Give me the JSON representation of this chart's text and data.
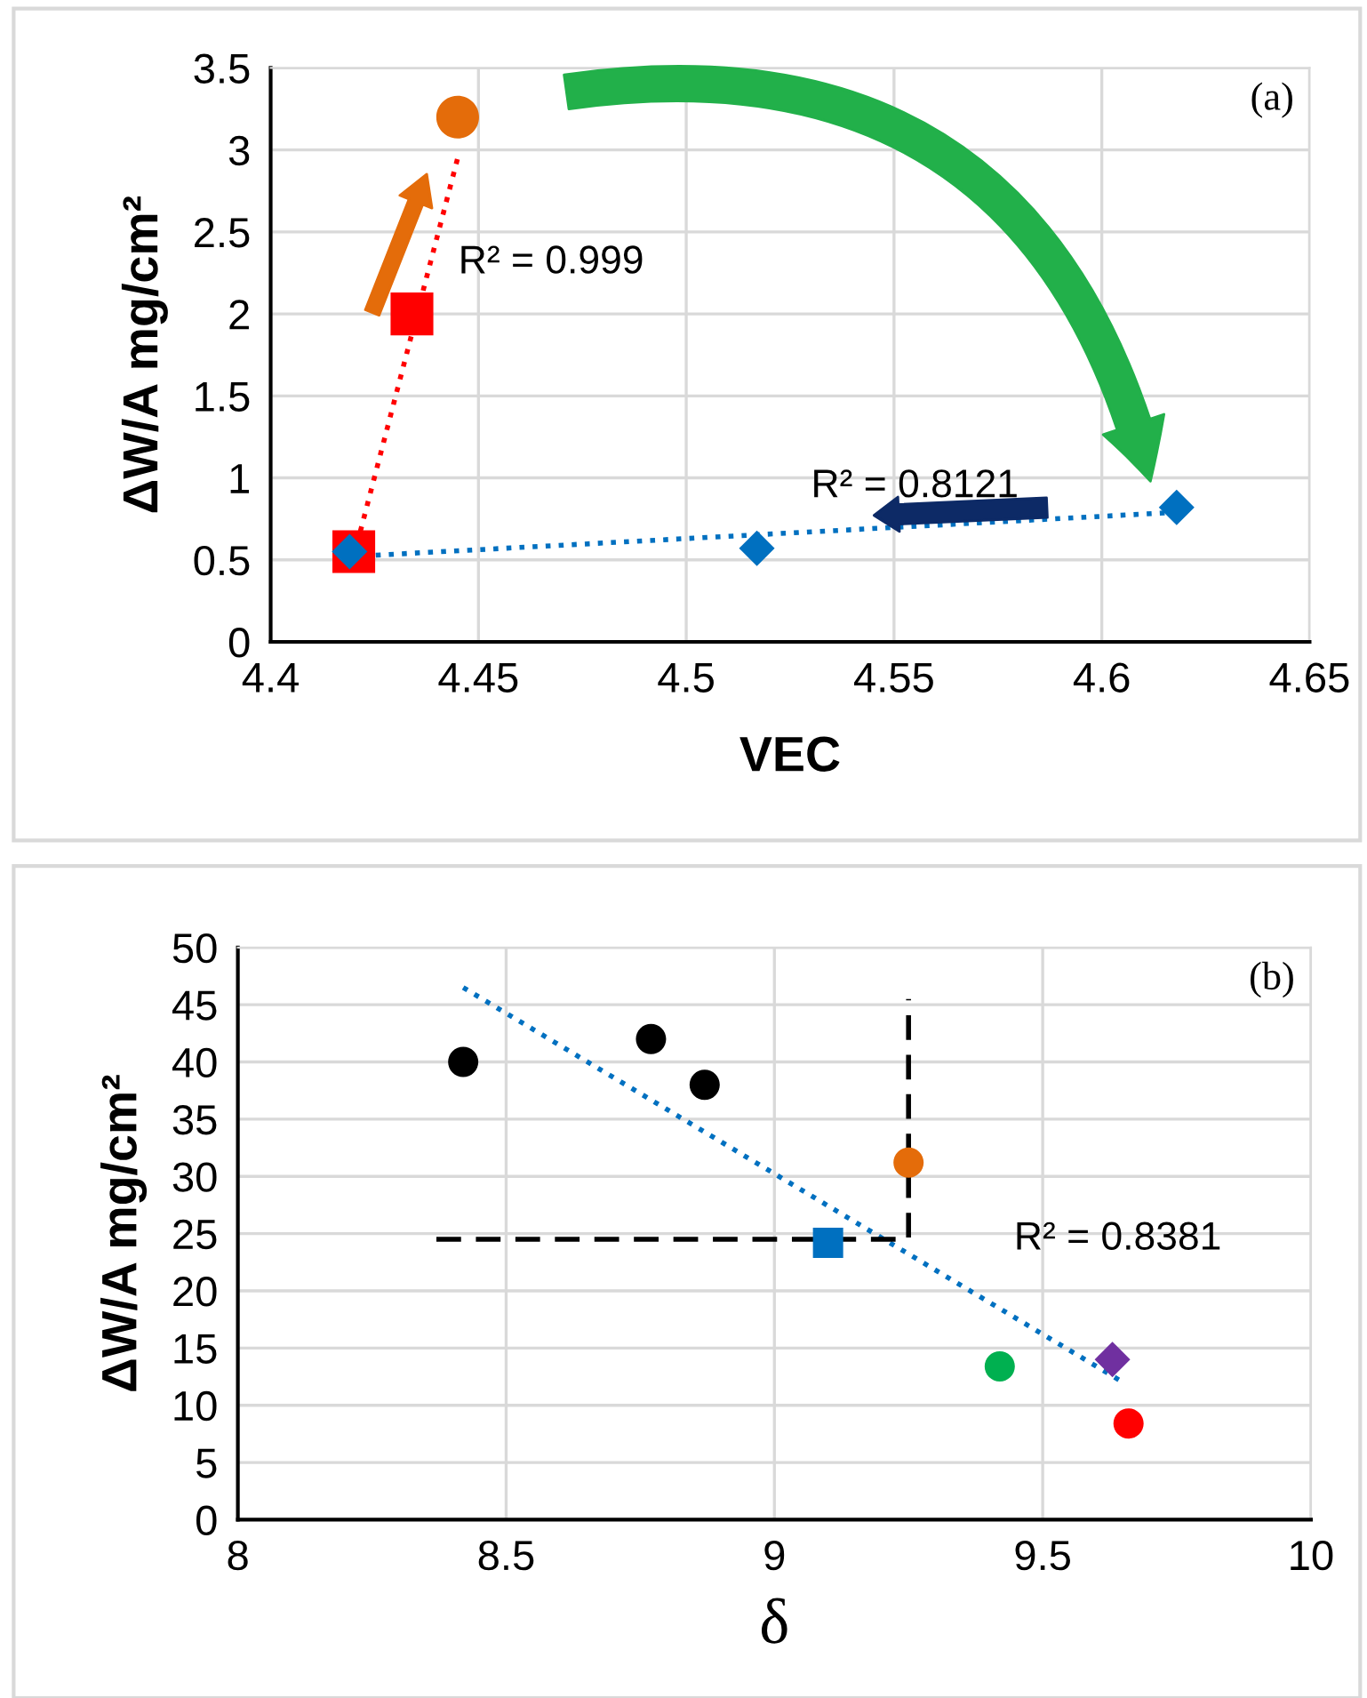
{
  "chart_data": [
    {
      "type": "scatter",
      "xlabel": "VEC",
      "ylabel": "ΔW/A mg/cm²",
      "xlim": [
        4.4,
        4.65
      ],
      "xticks": [
        4.4,
        4.45,
        4.5,
        4.55,
        4.6,
        4.65
      ],
      "ylim": [
        0,
        3.5
      ],
      "yticks": [
        0,
        0.5,
        1,
        1.5,
        2,
        2.5,
        3,
        3.5
      ],
      "grid": true,
      "legend": false,
      "series": [
        {
          "x": [
            4.42,
            4.434
          ],
          "values": [
            0.55,
            2.0
          ],
          "color": "#ff0000",
          "marker": "square"
        },
        {
          "x": [
            4.445
          ],
          "values": [
            3.2
          ],
          "color": "#e46c0a",
          "marker": "circle"
        },
        {
          "x": [
            4.419,
            4.517,
            4.618
          ],
          "values": [
            0.55,
            0.57,
            0.82
          ],
          "color": "#0070c0",
          "marker": "diamond"
        },
        {
          "type": "line",
          "x": [
            4.42,
            4.445
          ],
          "values": [
            0.52,
            2.95
          ],
          "color": "#ff0000",
          "line_style": "dotted",
          "marker": "none"
        },
        {
          "type": "line",
          "x": [
            4.419,
            4.618
          ],
          "values": [
            0.52,
            0.79
          ],
          "color": "#0070c0",
          "line_style": "dotted",
          "marker": "none"
        }
      ],
      "annotations": [
        "R² = 0.999",
        "R² = 0.8121",
        "(a)"
      ]
    },
    {
      "type": "scatter",
      "xlabel": "δ",
      "ylabel": "ΔW/A mg/cm²",
      "xlim": [
        8,
        10
      ],
      "xticks": [
        8,
        8.5,
        9,
        9.5,
        10
      ],
      "ylim": [
        0,
        50
      ],
      "yticks": [
        0,
        5,
        10,
        15,
        20,
        25,
        30,
        35,
        40,
        45,
        50
      ],
      "grid": true,
      "legend": false,
      "series": [
        {
          "x": [
            8.42,
            8.77,
            8.87
          ],
          "values": [
            40,
            42,
            38
          ],
          "color": "#000000",
          "marker": "circle"
        },
        {
          "x": [
            9.25
          ],
          "values": [
            31.2
          ],
          "color": "#e46c0a",
          "marker": "circle"
        },
        {
          "x": [
            9.1
          ],
          "values": [
            24.2
          ],
          "color": "#0070c0",
          "marker": "square"
        },
        {
          "x": [
            9.42
          ],
          "values": [
            13.4
          ],
          "color": "#00b050",
          "marker": "circle"
        },
        {
          "x": [
            9.63
          ],
          "values": [
            14
          ],
          "color": "#7030a0",
          "marker": "diamond"
        },
        {
          "x": [
            9.66
          ],
          "values": [
            8.4
          ],
          "color": "#ff0000",
          "marker": "circle"
        },
        {
          "type": "line",
          "x": [
            8.42,
            9.65
          ],
          "values": [
            46.5,
            12
          ],
          "color": "#0070c0",
          "line_style": "dotted",
          "marker": "none"
        },
        {
          "type": "line",
          "x": [
            8.37,
            9.25,
            9.25
          ],
          "values": [
            24.5,
            24.5,
            45.5
          ],
          "color": "#000000",
          "line_style": "dashed",
          "marker": "none"
        }
      ],
      "annotations": [
        "R² = 0.8381",
        "(b)"
      ]
    }
  ]
}
